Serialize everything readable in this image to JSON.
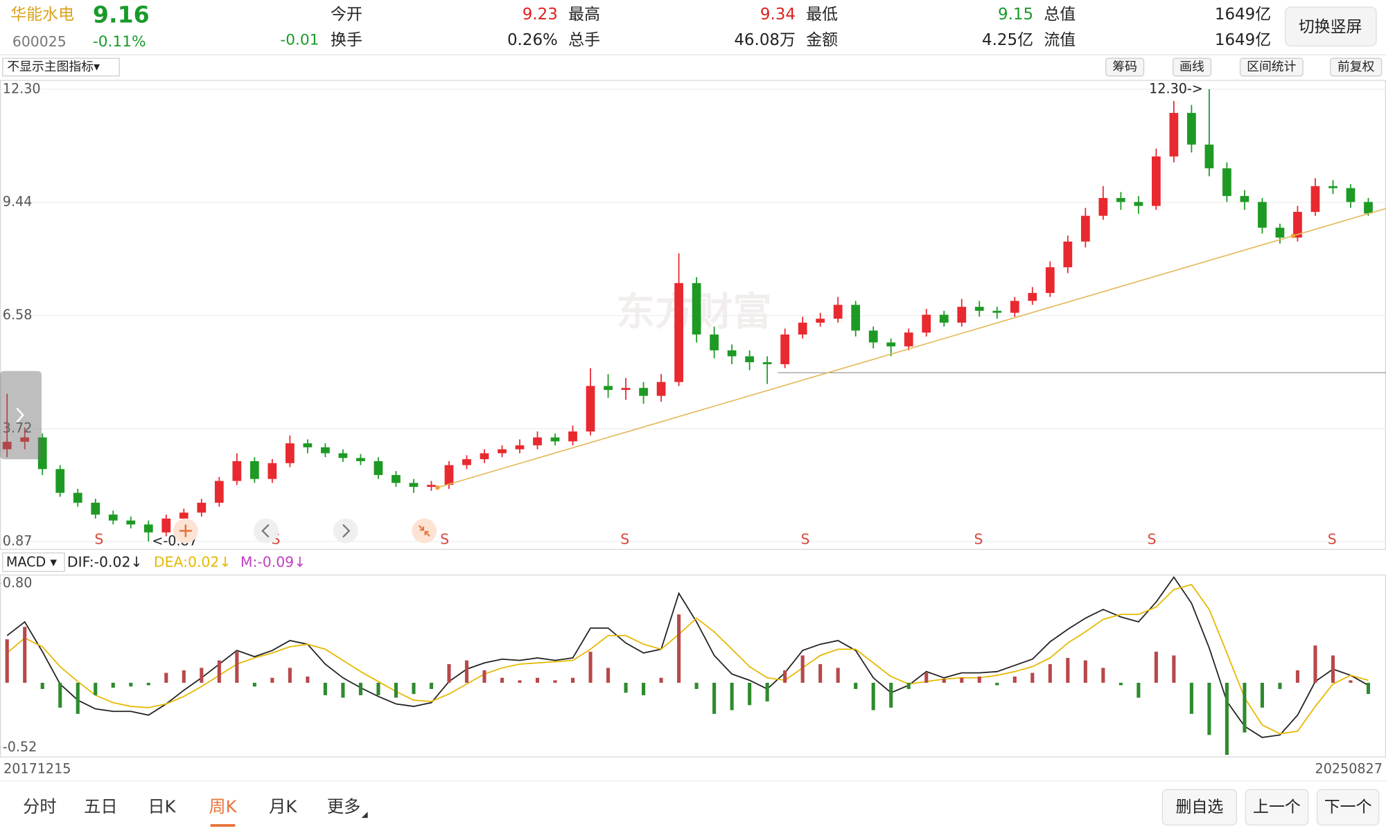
{
  "header": {
    "name": "华能水电",
    "price": "9.16",
    "code": "600025",
    "change_pct": "-0.11%",
    "change": "-0.01",
    "stats": [
      {
        "label": "今开",
        "value": "9.23",
        "color": "#e02020"
      },
      {
        "label": "最高",
        "value": "9.34",
        "color": "#e02020"
      },
      {
        "label": "最低",
        "value": "9.15",
        "color": "#1a9a2a"
      },
      {
        "label": "总值",
        "value": "1649亿",
        "color": "#222222"
      },
      {
        "label": "换手",
        "value": "0.26%",
        "color": "#222222"
      },
      {
        "label": "总手",
        "value": "46.08万",
        "color": "#222222"
      },
      {
        "label": "金额",
        "value": "4.25亿",
        "color": "#222222"
      },
      {
        "label": "流值",
        "value": "1649亿",
        "color": "#222222"
      }
    ],
    "button": "切换竖屏"
  },
  "toolbar": {
    "indicator": "不显示主图指标▾",
    "buttons": [
      "筹码",
      "画线",
      "区间统计",
      "前复权"
    ]
  },
  "chart_data": [
    {
      "type": "candlestick",
      "open": [
        3.2,
        3.39,
        3.5,
        2.7,
        2.1,
        1.85,
        1.55,
        1.4,
        1.3,
        1.1,
        1.45,
        1.6,
        1.85,
        2.4,
        2.9,
        2.45,
        2.85,
        3.35,
        3.25,
        3.1,
        2.98,
        2.9,
        2.55,
        2.35,
        2.25,
        2.3,
        2.8,
        2.95,
        3.1,
        3.2,
        3.3,
        3.5,
        3.4,
        3.65,
        4.8,
        4.7,
        4.75,
        4.55,
        4.9,
        7.4,
        6.1,
        5.7,
        5.55,
        5.4,
        5.35,
        6.1,
        6.4,
        6.5,
        6.85,
        6.2,
        5.9,
        5.8,
        6.15,
        6.6,
        6.4,
        6.8,
        6.7,
        6.65,
        6.95,
        7.15,
        7.8,
        8.45,
        9.1,
        9.55,
        9.45,
        9.35,
        10.6,
        11.7,
        10.9,
        10.3,
        9.6,
        9.45,
        8.8,
        8.55,
        9.2,
        9.85,
        9.8,
        9.45
      ],
      "high": [
        4.6,
        3.75,
        3.6,
        2.8,
        2.2,
        1.95,
        1.65,
        1.5,
        1.4,
        1.55,
        1.7,
        1.95,
        2.5,
        3.1,
        3.0,
        2.95,
        3.55,
        3.45,
        3.35,
        3.2,
        3.08,
        3.0,
        2.65,
        2.45,
        2.4,
        2.9,
        3.05,
        3.2,
        3.3,
        3.45,
        3.65,
        3.6,
        3.8,
        5.25,
        5.1,
        5.0,
        4.9,
        5.1,
        8.15,
        7.55,
        6.3,
        5.85,
        5.7,
        5.55,
        6.25,
        6.55,
        6.65,
        7.05,
        6.95,
        6.3,
        6.0,
        6.25,
        6.75,
        6.7,
        7.0,
        6.95,
        6.8,
        7.05,
        7.3,
        7.95,
        8.6,
        9.3,
        9.85,
        9.7,
        9.6,
        10.8,
        12.0,
        11.9,
        12.3,
        10.45,
        9.75,
        9.55,
        8.9,
        9.35,
        10.05,
        10.0,
        9.9,
        9.55
      ],
      "low": [
        3.0,
        3.2,
        2.55,
        2.0,
        1.75,
        1.45,
        1.3,
        1.2,
        0.87,
        1.0,
        1.35,
        1.5,
        1.75,
        2.3,
        2.35,
        2.35,
        2.75,
        3.1,
        3.0,
        2.88,
        2.8,
        2.45,
        2.25,
        2.1,
        2.15,
        2.2,
        2.7,
        2.85,
        3.0,
        3.1,
        3.2,
        3.3,
        3.3,
        3.55,
        4.5,
        4.45,
        4.35,
        4.4,
        4.8,
        5.9,
        5.5,
        5.35,
        5.2,
        4.85,
        5.25,
        6.0,
        6.3,
        6.4,
        6.05,
        5.75,
        5.55,
        5.7,
        6.05,
        6.3,
        6.3,
        6.55,
        6.5,
        6.55,
        6.85,
        7.05,
        7.65,
        8.3,
        9.0,
        9.25,
        9.15,
        9.25,
        10.45,
        10.7,
        10.1,
        9.45,
        9.25,
        8.65,
        8.4,
        8.45,
        9.1,
        9.65,
        9.3,
        9.1
      ],
      "close": [
        3.39,
        3.5,
        2.7,
        2.1,
        1.85,
        1.55,
        1.4,
        1.3,
        1.1,
        1.45,
        1.6,
        1.85,
        2.4,
        2.9,
        2.45,
        2.85,
        3.35,
        3.25,
        3.1,
        2.98,
        2.9,
        2.55,
        2.35,
        2.25,
        2.3,
        2.8,
        2.95,
        3.1,
        3.2,
        3.3,
        3.5,
        3.4,
        3.65,
        4.8,
        4.7,
        4.75,
        4.55,
        4.9,
        7.4,
        6.1,
        5.7,
        5.55,
        5.4,
        5.35,
        6.1,
        6.4,
        6.5,
        6.85,
        6.2,
        5.9,
        5.8,
        6.15,
        6.6,
        6.4,
        6.8,
        6.7,
        6.65,
        6.95,
        7.15,
        7.8,
        8.45,
        9.1,
        9.55,
        9.45,
        9.35,
        10.6,
        11.7,
        10.9,
        10.3,
        9.6,
        9.45,
        8.8,
        8.55,
        9.2,
        9.85,
        9.8,
        9.45,
        9.16
      ],
      "up_color": "#e8292f",
      "down_color": "#1e9a24",
      "ylim": [
        0.67,
        12.5
      ],
      "yticks": [
        0.87,
        3.72,
        6.58,
        9.44,
        {
          "value": 12.3,
          "label": "12.30"
        }
      ],
      "grid": true,
      "annotations": [
        "12.30->",
        "<-0.87"
      ],
      "markers": [
        "S",
        "S",
        "S",
        "S",
        "S",
        "S",
        "S",
        "S"
      ],
      "watermark": "东方财富"
    },
    {
      "type": "macd",
      "indicator": "MACD ▾",
      "ylim": [
        -0.59,
        0.86
      ],
      "yticks": [
        {
          "value": 0.8,
          "label": "0.80"
        },
        -0.52
      ],
      "bar_up_color": "#b8484a",
      "bar_down_color": "#2e8b2e",
      "series": [
        {
          "name": "DIF:-0.02↓",
          "color": "#222222",
          "values": [
            0.38,
            0.49,
            0.25,
            -0.01,
            -0.14,
            -0.21,
            -0.23,
            -0.23,
            -0.26,
            -0.17,
            -0.06,
            0.04,
            0.15,
            0.26,
            0.21,
            0.26,
            0.34,
            0.31,
            0.15,
            0.04,
            -0.04,
            -0.11,
            -0.17,
            -0.19,
            -0.16,
            0.01,
            0.11,
            0.16,
            0.19,
            0.18,
            0.2,
            0.18,
            0.2,
            0.44,
            0.44,
            0.32,
            0.24,
            0.27,
            0.72,
            0.49,
            0.22,
            0.07,
            0.02,
            -0.05,
            0.08,
            0.26,
            0.31,
            0.34,
            0.26,
            0.04,
            -0.08,
            -0.02,
            0.09,
            0.04,
            0.08,
            0.08,
            0.09,
            0.14,
            0.19,
            0.33,
            0.43,
            0.52,
            0.59,
            0.53,
            0.49,
            0.65,
            0.85,
            0.64,
            0.28,
            -0.15,
            -0.35,
            -0.44,
            -0.42,
            -0.26,
            0.01,
            0.11,
            0.06,
            -0.02
          ]
        },
        {
          "name": "DEA:0.02↓",
          "color": "#e6b800",
          "values": [
            0.24,
            0.36,
            0.29,
            0.13,
            0.01,
            -0.1,
            -0.16,
            -0.19,
            -0.2,
            -0.17,
            -0.11,
            -0.03,
            0.06,
            0.15,
            0.2,
            0.24,
            0.29,
            0.31,
            0.27,
            0.18,
            0.09,
            0.01,
            -0.07,
            -0.14,
            -0.15,
            -0.09,
            -0.01,
            0.07,
            0.12,
            0.15,
            0.16,
            0.17,
            0.18,
            0.27,
            0.38,
            0.38,
            0.31,
            0.27,
            0.39,
            0.52,
            0.41,
            0.27,
            0.13,
            0.04,
            0.02,
            0.12,
            0.22,
            0.27,
            0.27,
            0.16,
            0.05,
            -0.01,
            0.01,
            0.03,
            0.04,
            0.04,
            0.06,
            0.09,
            0.13,
            0.2,
            0.32,
            0.41,
            0.51,
            0.55,
            0.55,
            0.61,
            0.75,
            0.79,
            0.59,
            0.24,
            -0.12,
            -0.34,
            -0.41,
            -0.39,
            -0.19,
            -0.01,
            0.06,
            0.02
          ]
        },
        {
          "name": "M:-0.09↓",
          "color": "#c040c0",
          "type": "bar",
          "values": [
            0.35,
            0.45,
            -0.05,
            -0.2,
            -0.25,
            -0.1,
            -0.04,
            -0.03,
            -0.02,
            0.08,
            0.1,
            0.12,
            0.18,
            0.25,
            -0.03,
            0.04,
            0.12,
            0.05,
            -0.1,
            -0.12,
            -0.1,
            -0.1,
            -0.12,
            -0.09,
            -0.05,
            0.15,
            0.18,
            0.1,
            0.04,
            0.02,
            0.04,
            0.02,
            0.04,
            0.25,
            0.12,
            -0.08,
            -0.1,
            0.04,
            0.55,
            -0.05,
            -0.25,
            -0.22,
            -0.18,
            -0.15,
            0.1,
            0.22,
            0.15,
            0.12,
            -0.05,
            -0.22,
            -0.2,
            -0.05,
            0.08,
            0.03,
            0.04,
            0.05,
            -0.02,
            0.05,
            0.08,
            0.15,
            0.2,
            0.18,
            0.12,
            -0.02,
            -0.12,
            0.25,
            0.22,
            -0.25,
            -0.42,
            -0.58,
            -0.4,
            -0.2,
            -0.05,
            0.1,
            0.3,
            0.22,
            0.02,
            -0.09
          ]
        }
      ],
      "x_labels": [
        "20171215",
        "20250827"
      ]
    }
  ],
  "footer": {
    "tabs": [
      "分时",
      "五日",
      "日K",
      "周K",
      "月K",
      "更多"
    ],
    "active_tab": 3,
    "buttons": [
      "删自选",
      "上一个",
      "下一个"
    ]
  }
}
